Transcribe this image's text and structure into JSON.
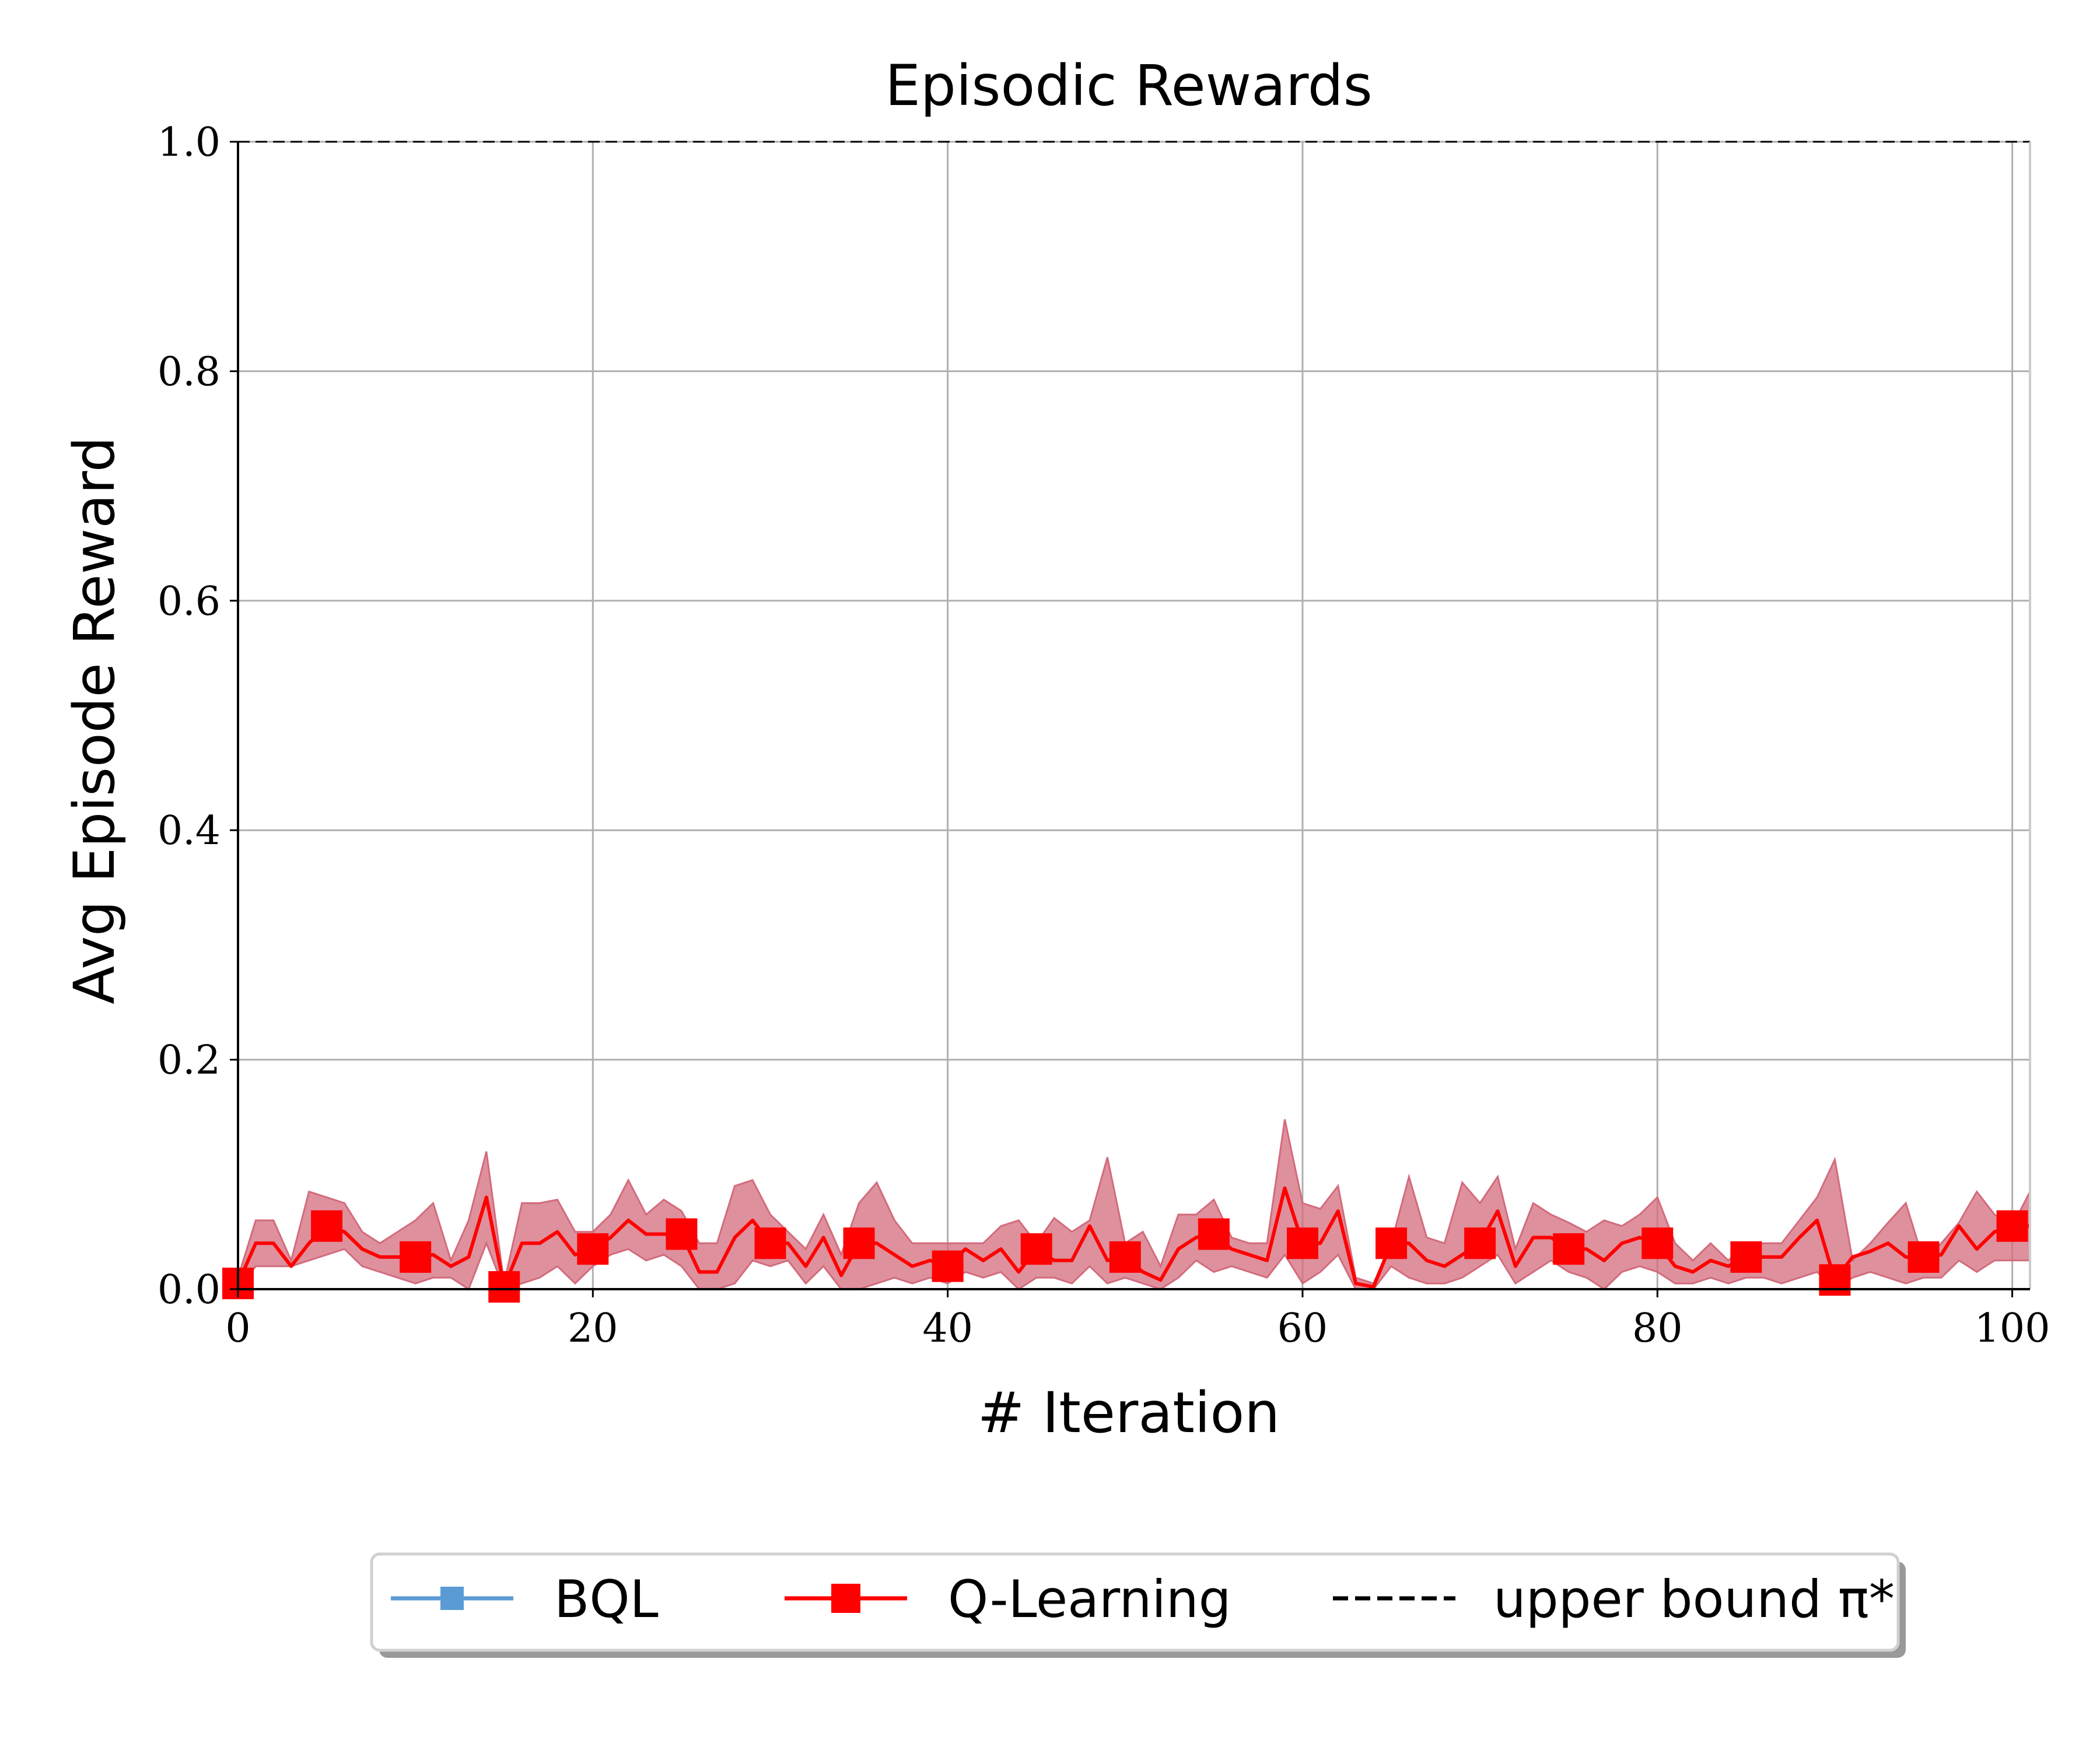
{
  "chart_data": {
    "type": "line",
    "title": "Episodic Rewards",
    "xlabel": "# Iteration",
    "ylabel": "Avg Episode Reward",
    "xlim": [
      0,
      101
    ],
    "ylim": [
      0,
      1.0
    ],
    "xticks": [
      "0",
      "20",
      "40",
      "60",
      "80",
      "100"
    ],
    "yticks": [
      "0.0",
      "0.2",
      "0.4",
      "0.6",
      "0.8",
      "1.0"
    ],
    "grid": true,
    "legend_position": "bottom-center-outside",
    "series": [
      {
        "name": "BQL",
        "color": "#5b9bd5",
        "marker": "square",
        "values": []
      },
      {
        "name": "Q-Learning",
        "color": "#ff0000",
        "band_color": "#d36b7c",
        "marker": "square",
        "marker_every": 5,
        "x": [
          0,
          1,
          2,
          3,
          4,
          5,
          6,
          7,
          8,
          9,
          10,
          11,
          12,
          13,
          14,
          15,
          16,
          17,
          18,
          19,
          20,
          21,
          22,
          23,
          24,
          25,
          26,
          27,
          28,
          29,
          30,
          31,
          32,
          33,
          34,
          35,
          36,
          37,
          38,
          39,
          40,
          41,
          42,
          43,
          44,
          45,
          46,
          47,
          48,
          49,
          50,
          51,
          52,
          53,
          54,
          55,
          56,
          57,
          58,
          59,
          60,
          61,
          62,
          63,
          64,
          65,
          66,
          67,
          68,
          69,
          70,
          71,
          72,
          73,
          74,
          75,
          76,
          77,
          78,
          79,
          80,
          81,
          82,
          83,
          84,
          85,
          86,
          87,
          88,
          89,
          90,
          91,
          92,
          93,
          94,
          95,
          96,
          97,
          98,
          99,
          100,
          101
        ],
        "values": [
          0.005,
          0.04,
          0.04,
          0.02,
          0.04,
          0.055,
          0.05,
          0.035,
          0.028,
          0.028,
          0.028,
          0.03,
          0.02,
          0.028,
          0.08,
          0.002,
          0.04,
          0.04,
          0.05,
          0.03,
          0.035,
          0.045,
          0.06,
          0.048,
          0.048,
          0.048,
          0.015,
          0.015,
          0.045,
          0.06,
          0.04,
          0.04,
          0.02,
          0.045,
          0.012,
          0.04,
          0.04,
          0.03,
          0.02,
          0.025,
          0.02,
          0.035,
          0.025,
          0.035,
          0.015,
          0.035,
          0.025,
          0.025,
          0.055,
          0.025,
          0.028,
          0.015,
          0.008,
          0.035,
          0.045,
          0.048,
          0.035,
          0.03,
          0.025,
          0.088,
          0.04,
          0.04,
          0.068,
          0.005,
          0.002,
          0.04,
          0.04,
          0.025,
          0.02,
          0.03,
          0.04,
          0.068,
          0.02,
          0.045,
          0.045,
          0.035,
          0.035,
          0.025,
          0.04,
          0.045,
          0.04,
          0.02,
          0.015,
          0.025,
          0.02,
          0.028,
          0.028,
          0.028,
          0.045,
          0.06,
          0.008,
          0.028,
          0.033,
          0.04,
          0.028,
          0.028,
          0.03,
          0.055,
          0.035,
          0.05,
          0.055,
          0.055
        ],
        "lower": [
          0.0,
          0.02,
          0.02,
          0.02,
          0.025,
          0.03,
          0.035,
          0.02,
          0.015,
          0.01,
          0.005,
          0.01,
          0.01,
          0.0,
          0.04,
          0.0,
          0.005,
          0.01,
          0.02,
          0.005,
          0.02,
          0.03,
          0.035,
          0.025,
          0.03,
          0.02,
          0.0,
          0.0,
          0.005,
          0.025,
          0.02,
          0.025,
          0.005,
          0.02,
          0.0,
          0.0,
          0.005,
          0.01,
          0.005,
          0.01,
          0.005,
          0.015,
          0.01,
          0.015,
          0.0,
          0.01,
          0.01,
          0.005,
          0.02,
          0.005,
          0.01,
          0.005,
          0.0,
          0.01,
          0.025,
          0.015,
          0.02,
          0.015,
          0.01,
          0.03,
          0.005,
          0.015,
          0.03,
          0.0,
          0.0,
          0.02,
          0.01,
          0.005,
          0.005,
          0.01,
          0.02,
          0.03,
          0.005,
          0.015,
          0.025,
          0.015,
          0.01,
          0.0,
          0.015,
          0.02,
          0.015,
          0.005,
          0.005,
          0.01,
          0.005,
          0.01,
          0.01,
          0.005,
          0.01,
          0.015,
          0.0,
          0.01,
          0.015,
          0.01,
          0.005,
          0.01,
          0.01,
          0.025,
          0.015,
          0.025,
          0.025,
          0.025
        ],
        "upper": [
          0.01,
          0.06,
          0.06,
          0.025,
          0.085,
          0.08,
          0.075,
          0.05,
          0.04,
          0.05,
          0.06,
          0.075,
          0.025,
          0.06,
          0.12,
          0.005,
          0.075,
          0.075,
          0.078,
          0.05,
          0.05,
          0.065,
          0.095,
          0.065,
          0.078,
          0.068,
          0.04,
          0.04,
          0.09,
          0.095,
          0.065,
          0.05,
          0.035,
          0.065,
          0.03,
          0.075,
          0.093,
          0.06,
          0.04,
          0.04,
          0.04,
          0.04,
          0.04,
          0.055,
          0.06,
          0.04,
          0.062,
          0.05,
          0.06,
          0.115,
          0.04,
          0.05,
          0.02,
          0.065,
          0.065,
          0.078,
          0.045,
          0.04,
          0.04,
          0.148,
          0.075,
          0.07,
          0.09,
          0.01,
          0.005,
          0.04,
          0.098,
          0.045,
          0.04,
          0.093,
          0.075,
          0.098,
          0.035,
          0.075,
          0.065,
          0.058,
          0.05,
          0.06,
          0.055,
          0.065,
          0.08,
          0.04,
          0.025,
          0.04,
          0.025,
          0.04,
          0.04,
          0.04,
          0.06,
          0.08,
          0.113,
          0.025,
          0.04,
          0.058,
          0.075,
          0.025,
          0.04,
          0.058,
          0.085,
          0.065,
          0.055,
          0.085
        ]
      },
      {
        "name": "upper bound π*",
        "color": "#000000",
        "style": "dashed",
        "x": [
          0,
          101
        ],
        "values": [
          1.0,
          1.0
        ]
      }
    ]
  }
}
